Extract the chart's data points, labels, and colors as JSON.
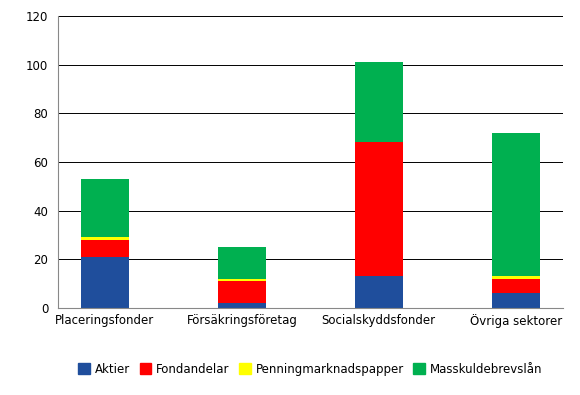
{
  "categories": [
    "Placeringsfonder",
    "Försäkringsföretag",
    "Socialskyddsfonder",
    "Övriga sektorer"
  ],
  "series": {
    "Aktier": [
      21,
      2,
      13,
      6
    ],
    "Fondandelar": [
      7,
      9,
      55,
      6
    ],
    "Penningmarknadspapper": [
      1,
      1,
      0,
      1
    ],
    "Masskuldebrevslån": [
      24,
      13,
      33,
      59
    ]
  },
  "colors": {
    "Aktier": "#1F4E9C",
    "Fondandelar": "#FF0000",
    "Penningmarknadspapper": "#FFFF00",
    "Masskuldebrevslån": "#00B050"
  },
  "ylim": [
    0,
    120
  ],
  "yticks": [
    0,
    20,
    40,
    60,
    80,
    100,
    120
  ],
  "ylabel": "",
  "xlabel": "",
  "background_color": "#FFFFFF",
  "grid_color": "#000000",
  "legend_ncol": 4,
  "bar_width": 0.35,
  "tick_fontsize": 8.5,
  "legend_fontsize": 8.5
}
